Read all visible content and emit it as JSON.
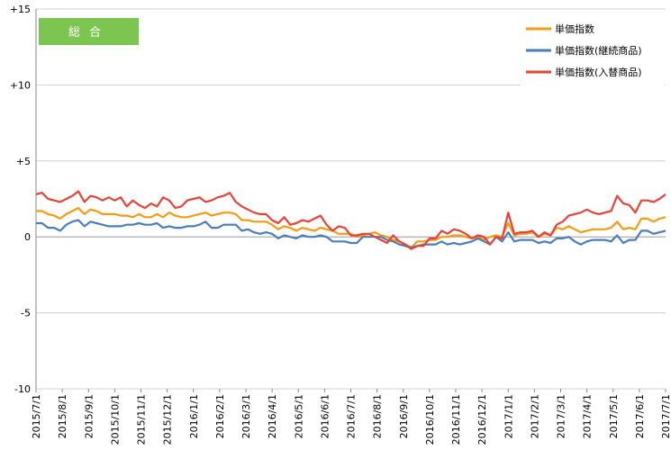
{
  "chart_data": {
    "type": "line",
    "title": "",
    "badge": "総合",
    "xlabel": "",
    "ylabel": "",
    "ylim": [
      -10,
      15
    ],
    "y_ticks": [
      -10,
      -5,
      0,
      5,
      10,
      15
    ],
    "y_tick_labels": [
      "-10",
      "-5",
      "0",
      "+5",
      "+10",
      "+15"
    ],
    "grid": "horizontal",
    "legend_position": "top-right",
    "x_tick_labels": [
      "2015/7/1",
      "2015/8/1",
      "2015/9/1",
      "2015/10/1",
      "2015/11/1",
      "2015/12/1",
      "2016/1/1",
      "2016/2/1",
      "2016/3/1",
      "2016/4/1",
      "2016/5/1",
      "2016/6/1",
      "2016/7/1",
      "2016/8/1",
      "2016/9/1",
      "2016/10/1",
      "2016/11/1",
      "2016/12/1",
      "2017/1/1",
      "2017/2/1",
      "2017/3/1",
      "2017/4/1",
      "2017/5/1",
      "2017/6/1",
      "2017/7/1"
    ],
    "series": [
      {
        "name": "単価指数",
        "color": "#F39C12",
        "values": [
          1.7,
          1.7,
          1.5,
          1.4,
          1.2,
          1.5,
          1.7,
          1.9,
          1.5,
          1.8,
          1.7,
          1.5,
          1.5,
          1.5,
          1.4,
          1.4,
          1.3,
          1.5,
          1.3,
          1.3,
          1.5,
          1.3,
          1.6,
          1.4,
          1.3,
          1.3,
          1.4,
          1.5,
          1.6,
          1.4,
          1.5,
          1.6,
          1.6,
          1.5,
          1.1,
          1.1,
          1.0,
          1.0,
          1.0,
          0.8,
          0.5,
          0.7,
          0.6,
          0.4,
          0.6,
          0.5,
          0.4,
          0.6,
          0.5,
          0.4,
          0.2,
          0.2,
          0.2,
          0.0,
          0.1,
          0.2,
          0.3,
          0.1,
          0.0,
          -0.2,
          -0.3,
          -0.5,
          -0.7,
          -0.3,
          -0.3,
          -0.2,
          -0.2,
          0.0,
          0.0,
          0.1,
          0.1,
          0.0,
          -0.1,
          0.0,
          -0.2,
          0.0,
          0.1,
          0.0,
          0.9,
          0.1,
          0.2,
          0.2,
          0.3,
          0.0,
          0.2,
          0.1,
          0.6,
          0.5,
          0.7,
          0.5,
          0.3,
          0.4,
          0.5,
          0.5,
          0.5,
          0.6,
          1.0,
          0.5,
          0.6,
          0.5,
          1.2,
          1.2,
          1.0,
          1.2,
          1.3
        ]
      },
      {
        "name": "単価指数(継続商品)",
        "color": "#4A7EBB",
        "values": [
          0.9,
          0.9,
          0.6,
          0.6,
          0.4,
          0.8,
          1.0,
          1.1,
          0.7,
          1.0,
          0.9,
          0.8,
          0.7,
          0.7,
          0.7,
          0.8,
          0.8,
          0.9,
          0.8,
          0.8,
          0.9,
          0.6,
          0.7,
          0.6,
          0.6,
          0.7,
          0.7,
          0.8,
          1.0,
          0.6,
          0.6,
          0.8,
          0.8,
          0.8,
          0.4,
          0.5,
          0.3,
          0.2,
          0.3,
          0.2,
          -0.1,
          0.1,
          0.0,
          -0.1,
          0.1,
          0.0,
          0.0,
          0.1,
          0.0,
          -0.3,
          -0.3,
          -0.3,
          -0.4,
          -0.4,
          0.0,
          0.0,
          0.0,
          0.0,
          -0.2,
          -0.3,
          -0.5,
          -0.6,
          -0.7,
          -0.6,
          -0.5,
          -0.5,
          -0.5,
          -0.3,
          -0.5,
          -0.4,
          -0.5,
          -0.4,
          -0.3,
          -0.1,
          -0.3,
          -0.5,
          0.0,
          -0.3,
          0.3,
          -0.3,
          -0.2,
          -0.2,
          -0.2,
          -0.4,
          -0.3,
          -0.4,
          -0.1,
          -0.1,
          0.0,
          -0.3,
          -0.5,
          -0.3,
          -0.2,
          -0.2,
          -0.2,
          -0.3,
          0.1,
          -0.4,
          -0.2,
          -0.2,
          0.4,
          0.4,
          0.2,
          0.3,
          0.4
        ]
      },
      {
        "name": "単価指数(入替商品)",
        "color": "#E8413A",
        "values": [
          2.8,
          2.9,
          2.5,
          2.4,
          2.3,
          2.5,
          2.7,
          3.0,
          2.3,
          2.7,
          2.6,
          2.4,
          2.6,
          2.4,
          2.6,
          2.0,
          2.4,
          2.1,
          1.9,
          2.2,
          2.0,
          2.6,
          2.4,
          1.9,
          2.0,
          2.4,
          2.5,
          2.6,
          2.3,
          2.4,
          2.6,
          2.7,
          2.9,
          2.3,
          2.0,
          1.8,
          1.6,
          1.5,
          1.5,
          1.1,
          0.9,
          1.3,
          0.8,
          0.9,
          1.1,
          1.0,
          1.2,
          1.4,
          0.8,
          0.4,
          0.7,
          0.6,
          0.1,
          0.1,
          0.2,
          0.2,
          0.0,
          -0.2,
          -0.4,
          0.1,
          -0.3,
          -0.5,
          -0.8,
          -0.6,
          -0.6,
          -0.1,
          -0.1,
          0.4,
          0.2,
          0.5,
          0.4,
          0.2,
          -0.1,
          0.1,
          0.0,
          -0.5,
          0.0,
          -0.1,
          1.6,
          0.2,
          0.3,
          0.3,
          0.4,
          0.0,
          0.3,
          0.1,
          0.8,
          1.0,
          1.4,
          1.5,
          1.6,
          1.8,
          1.6,
          1.5,
          1.6,
          1.7,
          2.7,
          2.2,
          2.1,
          1.6,
          2.4,
          2.4,
          2.3,
          2.5,
          2.8
        ]
      }
    ]
  }
}
